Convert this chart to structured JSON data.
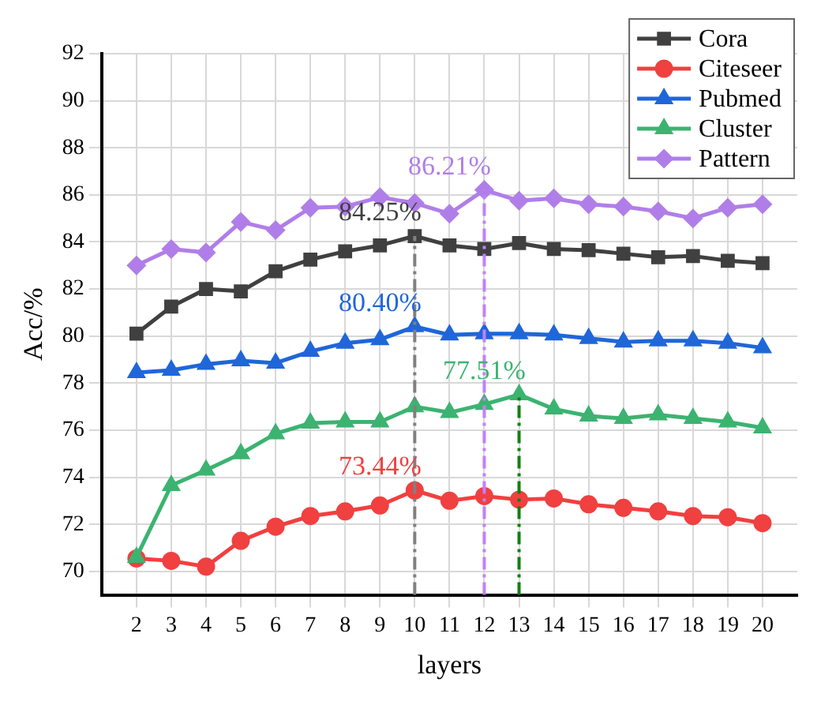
{
  "chart_data": {
    "type": "line",
    "xlabel": "layers",
    "ylabel": "Acc/%",
    "x": [
      2,
      3,
      4,
      5,
      6,
      7,
      8,
      9,
      10,
      11,
      12,
      13,
      14,
      15,
      16,
      17,
      18,
      19,
      20
    ],
    "xlim": [
      1,
      21
    ],
    "xticks": [
      2,
      3,
      4,
      5,
      6,
      7,
      8,
      9,
      10,
      11,
      12,
      13,
      14,
      15,
      16,
      17,
      18,
      19,
      20
    ],
    "ylim": [
      69,
      92
    ],
    "yticks": [
      70,
      72,
      74,
      76,
      78,
      80,
      82,
      84,
      86,
      88,
      90,
      92
    ],
    "grid": true,
    "legend": "top right",
    "series": [
      {
        "name": "Cora",
        "color": "#404040",
        "marker": "square",
        "values": [
          80.1,
          81.25,
          82.0,
          81.9,
          82.75,
          83.25,
          83.6,
          83.85,
          84.25,
          83.85,
          83.7,
          83.95,
          83.7,
          83.65,
          83.5,
          83.35,
          83.4,
          83.2,
          83.1
        ]
      },
      {
        "name": "Citeseer",
        "color": "#f04040",
        "marker": "circle",
        "values": [
          70.55,
          70.45,
          70.2,
          71.3,
          71.9,
          72.35,
          72.55,
          72.8,
          73.44,
          73.0,
          73.2,
          73.05,
          73.1,
          72.85,
          72.7,
          72.55,
          72.35,
          72.3,
          72.05
        ]
      },
      {
        "name": "Pubmed",
        "color": "#1f66d9",
        "marker": "triangle",
        "values": [
          78.45,
          78.55,
          78.8,
          78.95,
          78.85,
          79.35,
          79.7,
          79.85,
          80.4,
          80.05,
          80.1,
          80.1,
          80.05,
          79.9,
          79.75,
          79.8,
          79.8,
          79.7,
          79.5
        ]
      },
      {
        "name": "Cluster",
        "color": "#3cb371",
        "marker": "triangle",
        "values": [
          70.6,
          73.65,
          74.3,
          75.0,
          75.85,
          76.3,
          76.35,
          76.35,
          77.0,
          76.75,
          77.1,
          77.51,
          76.9,
          76.6,
          76.5,
          76.65,
          76.5,
          76.35,
          76.1
        ]
      },
      {
        "name": "Pattern",
        "color": "#b07ee8",
        "marker": "diamond",
        "values": [
          83.0,
          83.7,
          83.55,
          84.85,
          84.5,
          85.45,
          85.5,
          85.9,
          85.65,
          85.2,
          86.21,
          85.75,
          85.85,
          85.6,
          85.5,
          85.3,
          85.0,
          85.45,
          85.6
        ]
      }
    ],
    "ref_lines": [
      {
        "axis": "x",
        "value": 10,
        "color": "#808080",
        "line_style": "dashed"
      },
      {
        "axis": "x",
        "value": 12,
        "color": "#c080ff",
        "line_style": "dashed"
      },
      {
        "axis": "x",
        "value": 13,
        "color": "#108010",
        "line_style": "dashed"
      }
    ],
    "annotations": [
      {
        "text": "84.25%",
        "x": 10,
        "y": 84.25
      },
      {
        "text": "73.44%",
        "x": 10,
        "y": 73.44
      },
      {
        "text": "80.40%",
        "x": 10,
        "y": 80.4
      },
      {
        "text": "77.51%",
        "x": 13,
        "y": 77.51
      },
      {
        "text": "86.21%",
        "x": 12,
        "y": 86.21
      }
    ]
  }
}
